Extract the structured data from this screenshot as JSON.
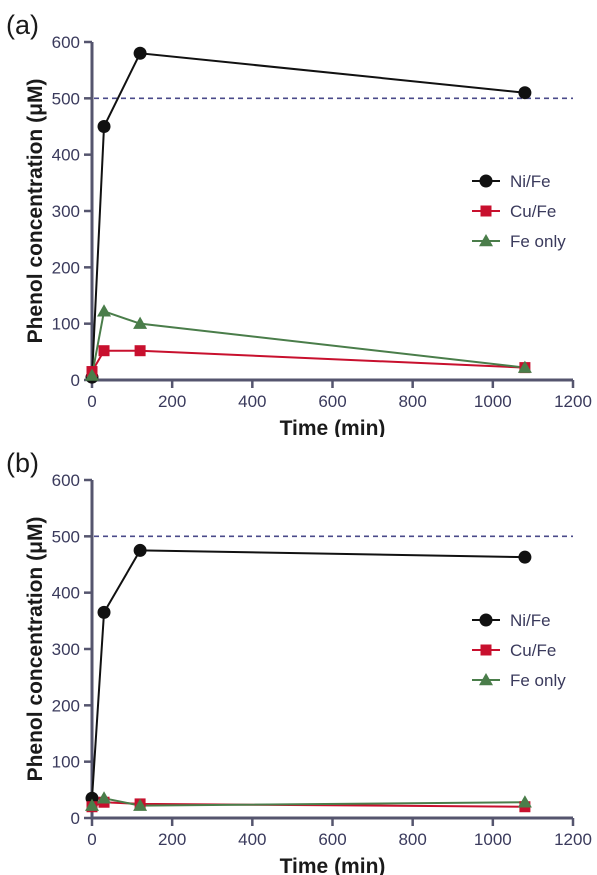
{
  "colors": {
    "axis": "#55556e",
    "refline": "#4a4a8a",
    "ni_fe": "#111111",
    "cu_fe": "#c8102e",
    "fe_only": "#4a7d4a"
  },
  "chart_data": [
    {
      "type": "line",
      "panel_label": "(a)",
      "title": "",
      "xlabel": "Time (min)",
      "ylabel": "Phenol concentration  (μM)",
      "xlim": [
        0,
        1200
      ],
      "ylim": [
        0,
        600
      ],
      "xticks": [
        "0",
        "200",
        "400",
        "600",
        "800",
        "1000",
        "1200"
      ],
      "yticks": [
        "0",
        "100",
        "200",
        "300",
        "400",
        "500",
        "600"
      ],
      "reference_line": 500,
      "legend_position": "right",
      "series": [
        {
          "name": "Ni/Fe",
          "marker": "circle",
          "color": "#111111",
          "x": [
            0,
            30,
            120,
            1080
          ],
          "y": [
            5,
            450,
            580,
            510
          ]
        },
        {
          "name": "Cu/Fe",
          "marker": "square",
          "color": "#c8102e",
          "x": [
            0,
            30,
            120,
            1080
          ],
          "y": [
            15,
            52,
            52,
            22
          ]
        },
        {
          "name": "Fe only",
          "marker": "triangle",
          "color": "#4a7d4a",
          "x": [
            0,
            30,
            120,
            1080
          ],
          "y": [
            8,
            122,
            100,
            22
          ]
        }
      ]
    },
    {
      "type": "line",
      "panel_label": "(b)",
      "title": "",
      "xlabel": "Time (min)",
      "ylabel": "Phenol concentration  (μM)",
      "xlim": [
        0,
        1200
      ],
      "ylim": [
        0,
        600
      ],
      "xticks": [
        "0",
        "200",
        "400",
        "600",
        "800",
        "1000",
        "1200"
      ],
      "yticks": [
        "0",
        "100",
        "200",
        "300",
        "400",
        "500",
        "600"
      ],
      "reference_line": 500,
      "legend_position": "right",
      "series": [
        {
          "name": "Ni/Fe",
          "marker": "circle",
          "color": "#111111",
          "x": [
            0,
            30,
            120,
            1080
          ],
          "y": [
            35,
            365,
            475,
            463
          ]
        },
        {
          "name": "Cu/Fe",
          "marker": "square",
          "color": "#c8102e",
          "x": [
            0,
            30,
            120,
            1080
          ],
          "y": [
            20,
            28,
            25,
            20
          ]
        },
        {
          "name": "Fe only",
          "marker": "triangle",
          "color": "#4a7d4a",
          "x": [
            0,
            30,
            120,
            1080
          ],
          "y": [
            22,
            35,
            22,
            28
          ]
        }
      ]
    }
  ]
}
